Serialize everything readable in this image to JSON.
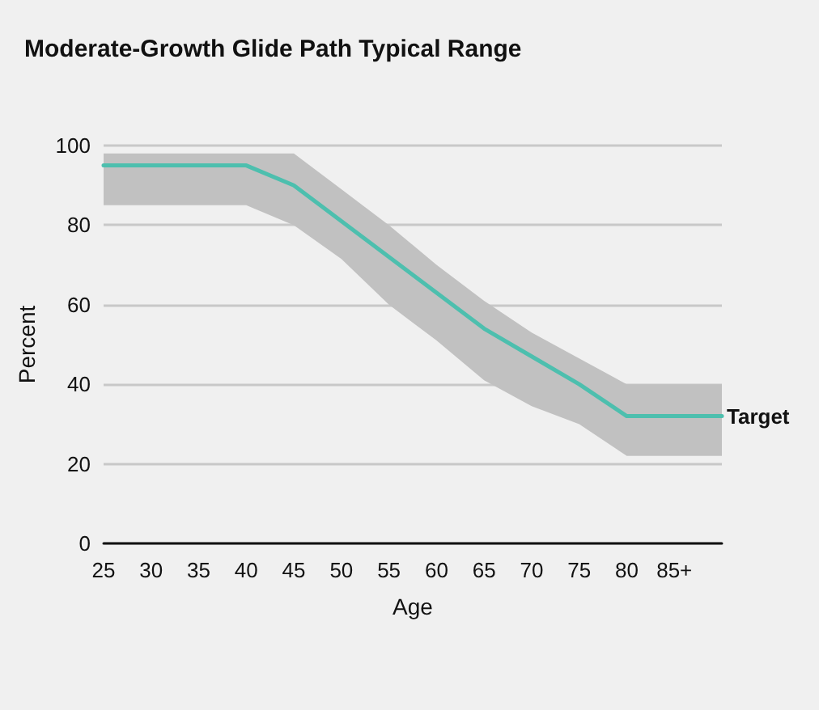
{
  "chart_data": {
    "type": "line",
    "title": "Moderate-Growth Glide Path Typical Range",
    "xlabel": "Age",
    "ylabel": "Percent",
    "categories": [
      "25",
      "30",
      "35",
      "40",
      "45",
      "50",
      "55",
      "60",
      "65",
      "70",
      "75",
      "80",
      "85+",
      null
    ],
    "series": [
      {
        "name": "Target",
        "color": "#4dbfae",
        "values": [
          95,
          95,
          95,
          95,
          90,
          81,
          72,
          63,
          54,
          47,
          40,
          32,
          32,
          32
        ],
        "lower": [
          85,
          85,
          85,
          85,
          80,
          71.5,
          60,
          51,
          41,
          34.5,
          30,
          22,
          22,
          22
        ],
        "upper": [
          98,
          98,
          98,
          98,
          98,
          89,
          80,
          70,
          61,
          53,
          46.5,
          40,
          40,
          40
        ]
      }
    ],
    "ylim": [
      0,
      100
    ],
    "yticks": [
      0,
      20,
      40,
      60,
      80,
      100
    ],
    "grid": "y",
    "legend": false,
    "marker": "none",
    "line_style": "solid"
  }
}
